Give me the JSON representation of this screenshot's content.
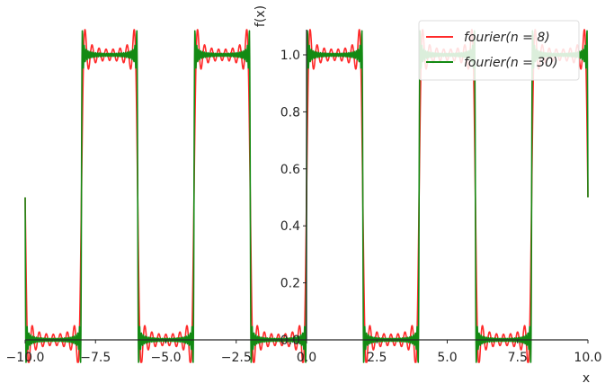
{
  "chart_data": {
    "type": "line",
    "title": "",
    "xlabel": "x",
    "ylabel": "f(x)",
    "xlim": [
      -10.0,
      10.0
    ],
    "ylim": [
      0.0,
      1.0
    ],
    "grid": false,
    "legend_position": "top-right",
    "spines": "centered at origin",
    "x_ticks": [
      -10.0,
      -7.5,
      -5.0,
      -2.5,
      0.0,
      2.5,
      5.0,
      7.5,
      10.0
    ],
    "x_tick_labels": [
      "−10.0",
      "−7.5",
      "−5.0",
      "−2.5",
      "0.0",
      "2.5",
      "5.0",
      "7.5",
      "10.0"
    ],
    "y_ticks": [
      0.0,
      0.2,
      0.4,
      0.6,
      0.8,
      1.0
    ],
    "y_tick_labels": [
      "0.0",
      "0.2",
      "0.4",
      "0.6",
      "0.8",
      "1.0"
    ],
    "function": {
      "description": "Fourier partial sums of a square wave with period 4, high on (0,2), low on (2,4)",
      "period": 4,
      "high_interval": [
        0,
        2
      ],
      "formula": "f(x) = 0.5 + sum_{k=0}^{n-1} (2/(pi*(2k+1))) * sin((2k+1)*pi*x/2)",
      "samples": 2000
    },
    "series": [
      {
        "name": "fourier(n = 8)",
        "legend_label": "fourier(n = 8)",
        "terms": 8,
        "color": "#ff2a2a"
      },
      {
        "name": "fourier(n = 30)",
        "legend_label": "fourier(n = 30)",
        "terms": 30,
        "color": "#138a13"
      }
    ]
  },
  "colors": {
    "axis": "#262626",
    "background": "#ffffff",
    "legend_border": "#dddddd"
  }
}
